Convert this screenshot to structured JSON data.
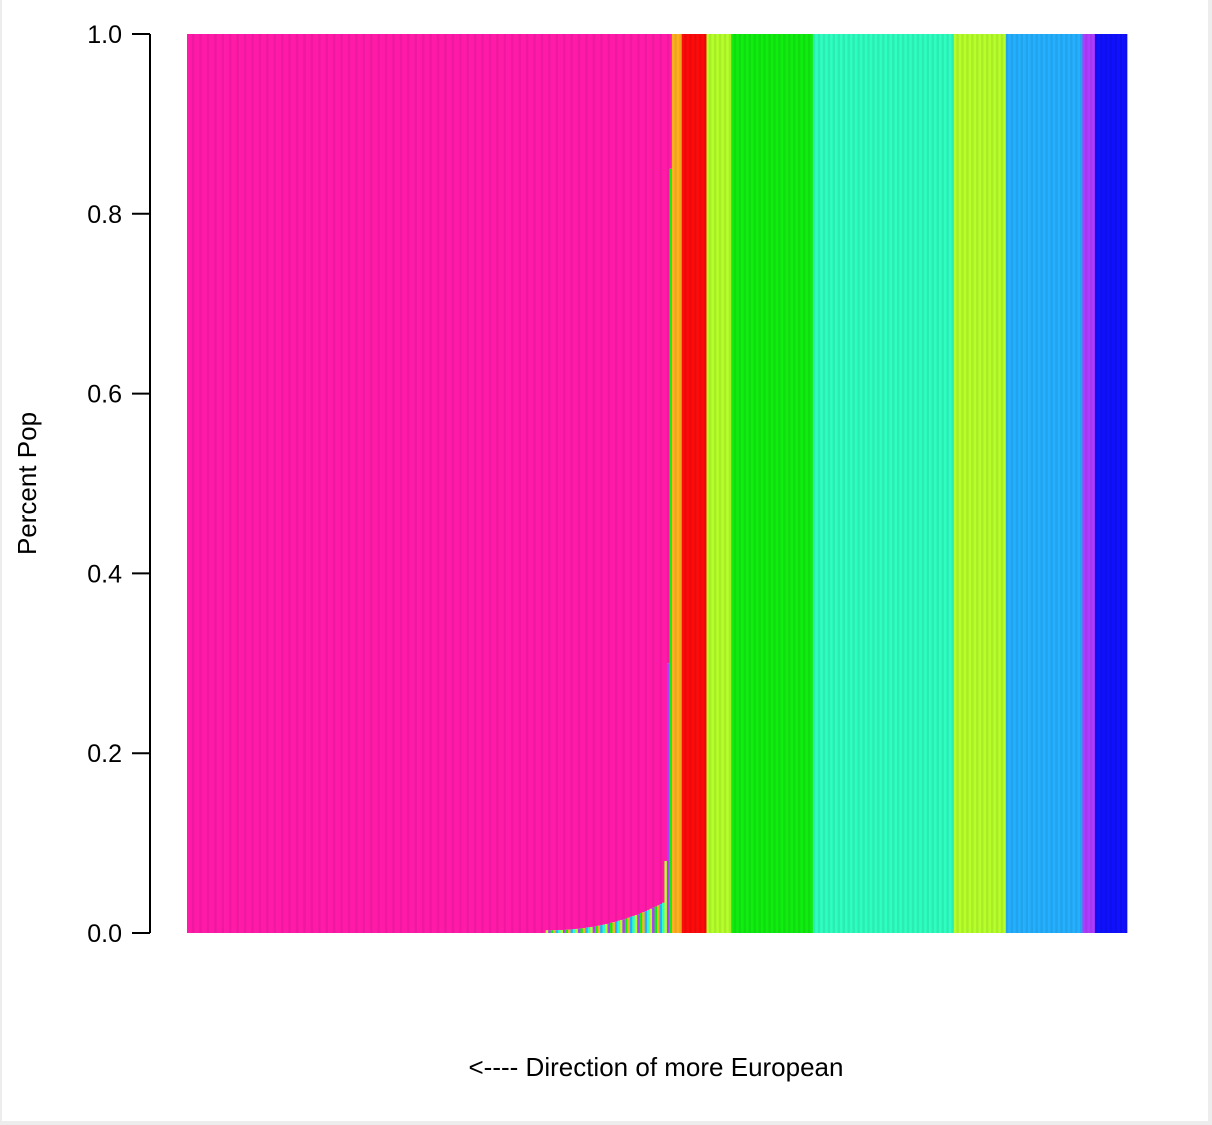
{
  "chart_data": {
    "type": "bar",
    "stacked": true,
    "title": "",
    "xlabel": "<---- Direction of more European",
    "ylabel": "Percent Pop",
    "ylim": [
      0,
      1
    ],
    "yticks": [
      "0.0",
      "0.2",
      "0.4",
      "0.6",
      "0.8",
      "1.0"
    ],
    "ytick_values": [
      0,
      0.2,
      0.4,
      0.6,
      0.8,
      1.0
    ],
    "x_axis_shown": false,
    "grid": false,
    "legend": "none",
    "n_samples": 380,
    "colors": {
      "pink": "#ff1aa8",
      "orange": "#ffb020",
      "red": "#ff0a0a",
      "yellow_green": "#b6ff2a",
      "green": "#10ee10",
      "aquamarine": "#2effc0",
      "sky_blue": "#25b0ff",
      "purple": "#b03cff",
      "blue": "#1010ff"
    },
    "pink_block": {
      "from": 1,
      "to": 196,
      "value": 1.0,
      "mixed_from": 146
    },
    "groups": [
      {
        "component": "orange",
        "from": 197,
        "to": 200,
        "value": 1.0
      },
      {
        "component": "red",
        "from": 201,
        "to": 210,
        "value": 1.0
      },
      {
        "component": "yellow_green",
        "from": 211,
        "to": 220,
        "value": 1.0
      },
      {
        "component": "green",
        "from": 221,
        "to": 253,
        "value": 1.0
      },
      {
        "component": "aquamarine",
        "from": 254,
        "to": 310,
        "value": 1.0
      },
      {
        "component": "yellow_green",
        "from": 311,
        "to": 331,
        "value": 1.0
      },
      {
        "component": "sky_blue",
        "from": 332,
        "to": 362,
        "value": 1.0
      },
      {
        "component": "purple",
        "from": 363,
        "to": 367,
        "value": 1.0
      },
      {
        "component": "blue",
        "from": 368,
        "to": 380,
        "value": 1.0
      }
    ]
  }
}
